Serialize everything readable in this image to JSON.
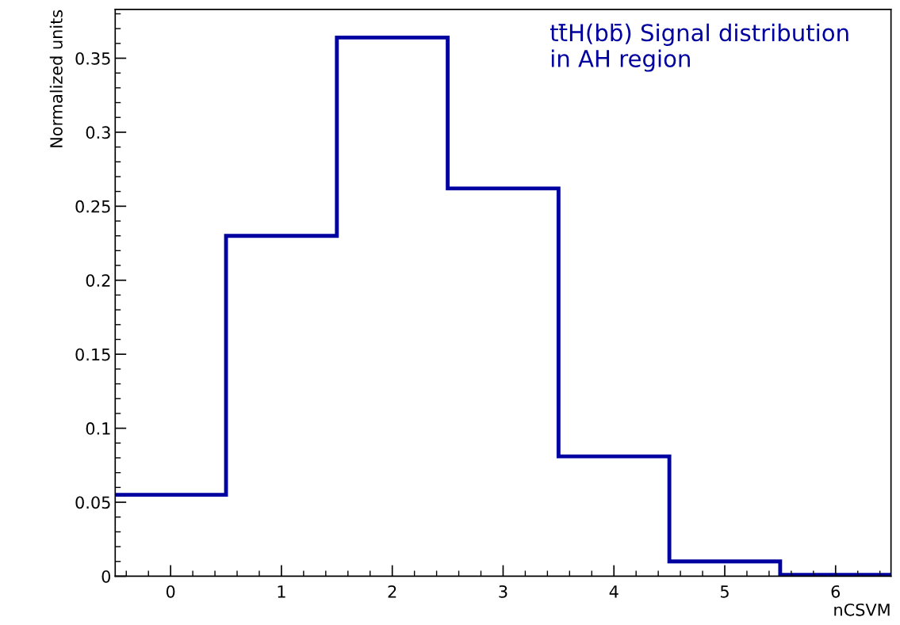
{
  "chart_data": {
    "type": "histogram",
    "bins": [
      -0.5,
      0.5,
      1.5,
      2.5,
      3.5,
      4.5,
      5.5,
      6.5
    ],
    "values": [
      0.055,
      0.23,
      0.364,
      0.262,
      0.081,
      0.01,
      0.001
    ],
    "color": "#0000a0",
    "xlabel": "nCSVM",
    "ylabel": "Normalized units",
    "annotations": [
      "tt̄H(bb̄) Signal distribution\nin AH region"
    ],
    "xlim": [
      -0.5,
      6.5
    ],
    "ylim": [
      0,
      0.383
    ],
    "xticks": [
      0,
      1,
      2,
      3,
      4,
      5,
      6
    ],
    "yticks": [
      0,
      0.05,
      0.1,
      0.15,
      0.2,
      0.25,
      0.3,
      0.35
    ],
    "grid": false,
    "legend": false
  }
}
